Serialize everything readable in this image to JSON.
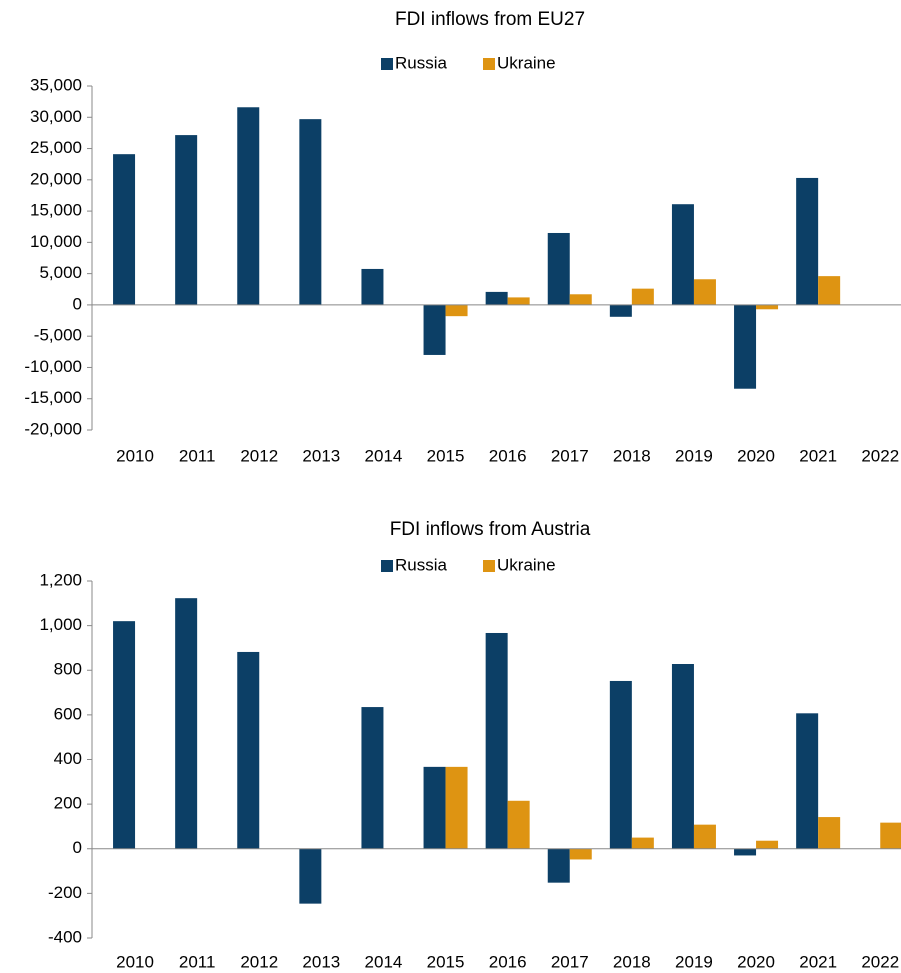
{
  "chart_data": [
    {
      "type": "bar",
      "title": "FDI inflows from EU27",
      "categories": [
        "2010",
        "2011",
        "2012",
        "2013",
        "2014",
        "2015",
        "2016",
        "2017",
        "2018",
        "2019",
        "2020",
        "2021",
        "2022"
      ],
      "series": [
        {
          "name": "Russia",
          "color": "#0c3f66",
          "values": [
            24100,
            27150,
            31600,
            29700,
            5750,
            -8000,
            2080,
            11500,
            -1900,
            16100,
            -13400,
            20300,
            null
          ]
        },
        {
          "name": "Ukraine",
          "color": "#de9412",
          "values": [
            null,
            null,
            null,
            null,
            null,
            -1800,
            1200,
            1700,
            2600,
            4100,
            -700,
            4600,
            null
          ]
        }
      ],
      "ylim": [
        -20000,
        35000
      ],
      "yticks": [
        {
          "value": -20000,
          "label": "-20,000"
        },
        {
          "value": -15000,
          "label": "-15,000"
        },
        {
          "value": -10000,
          "label": "-10,000"
        },
        {
          "value": -5000,
          "label": "-5,000"
        },
        0,
        {
          "value": 5000,
          "label": "5,000"
        },
        {
          "value": 10000,
          "label": "10,000"
        },
        {
          "value": 15000,
          "label": "15,000"
        },
        {
          "value": 20000,
          "label": "20,000"
        },
        {
          "value": 25000,
          "label": "25,000"
        },
        {
          "value": 30000,
          "label": "30,000"
        },
        {
          "value": 35000,
          "label": "35,000"
        }
      ],
      "legend": "top"
    },
    {
      "type": "bar",
      "title": "FDI inflows from Austria",
      "categories": [
        "2010",
        "2011",
        "2012",
        "2013",
        "2014",
        "2015",
        "2016",
        "2017",
        "2018",
        "2019",
        "2020",
        "2021",
        "2022"
      ],
      "series": [
        {
          "name": "Russia",
          "color": "#0c3f66",
          "values": [
            1020,
            1123,
            882,
            -246,
            635,
            367,
            967,
            -152,
            752,
            828,
            -30,
            607,
            null
          ]
        },
        {
          "name": "Ukraine",
          "color": "#de9412",
          "values": [
            null,
            null,
            null,
            null,
            null,
            367,
            215,
            -48,
            50,
            108,
            36,
            142,
            117
          ]
        }
      ],
      "ylim": [
        -400,
        1200
      ],
      "yticks": [
        -400,
        -200,
        0,
        200,
        400,
        600,
        800,
        {
          "value": 1000,
          "label": "1,000"
        },
        {
          "value": 1200,
          "label": "1,200"
        }
      ],
      "legend": "top"
    }
  ]
}
